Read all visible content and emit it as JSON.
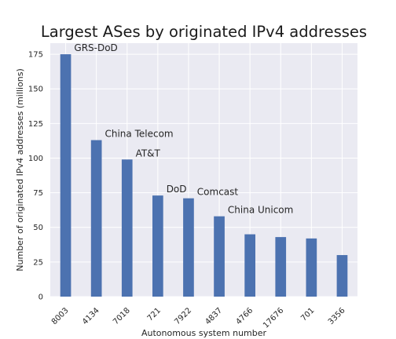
{
  "chart_data": {
    "type": "bar",
    "title": "Largest ASes by originated IPv4 addresses",
    "xlabel": "Autonomous system number",
    "ylabel": "Number of originated IPv4 addresses (millions)",
    "categories": [
      "8003",
      "4134",
      "7018",
      "721",
      "7922",
      "4837",
      "4766",
      "17676",
      "701",
      "3356"
    ],
    "values": [
      175,
      113,
      99,
      73,
      71,
      58,
      45,
      43,
      42,
      30
    ],
    "annotations": [
      {
        "category": "8003",
        "text": "GRS-DoD"
      },
      {
        "category": "4134",
        "text": "China Telecom"
      },
      {
        "category": "7018",
        "text": "AT&T"
      },
      {
        "category": "721",
        "text": "DoD"
      },
      {
        "category": "7922",
        "text": "Comcast"
      },
      {
        "category": "4837",
        "text": "China Unicom"
      }
    ],
    "yticks": [
      0,
      25,
      50,
      75,
      100,
      125,
      150,
      175
    ],
    "ylim": [
      0,
      183
    ],
    "grid": true,
    "colors": {
      "bar": "#4c72b0",
      "plot_background": "#eaeaf2",
      "grid": "#ffffff"
    }
  }
}
